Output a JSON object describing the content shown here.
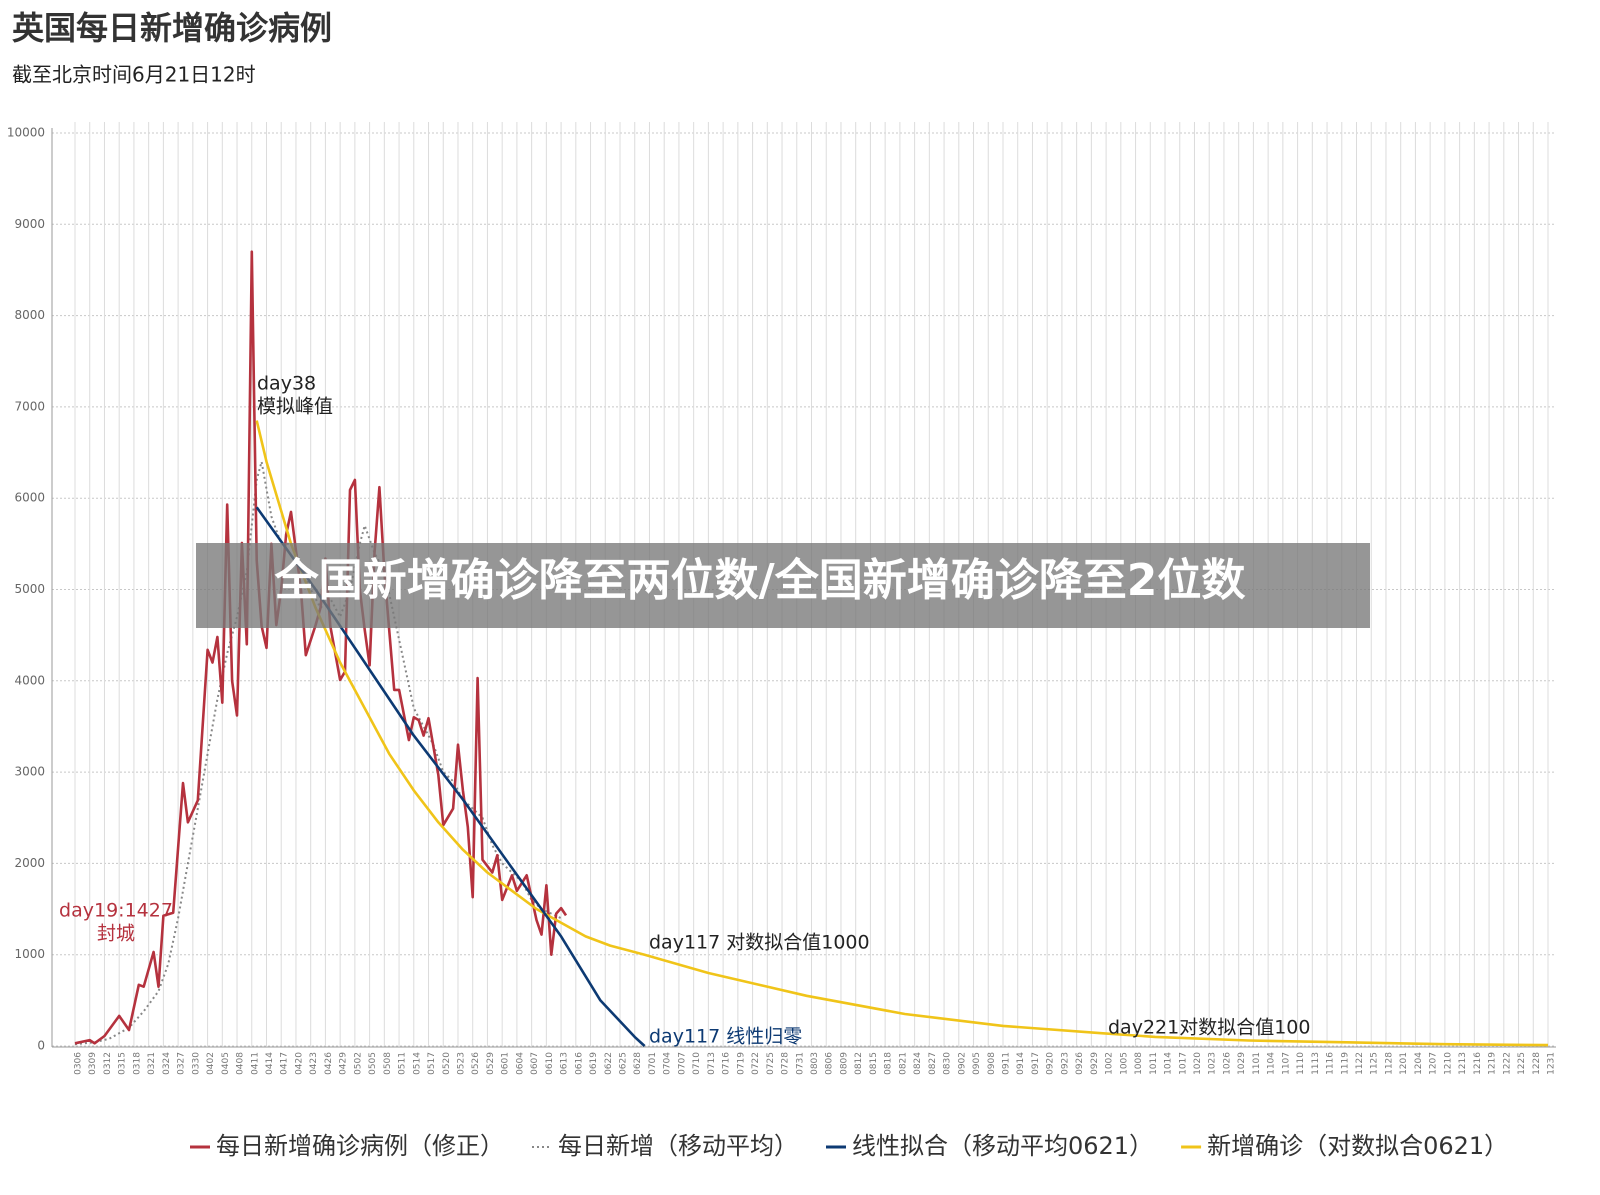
{
  "chart_data": {
    "type": "line",
    "title": "英国每日新增确诊病例",
    "subtitle": "截至北京时间6月21日12时",
    "xlim": [
      1,
      301
    ],
    "xticks": [
      {
        "value": 1,
        "label": "0306"
      },
      {
        "value": 4,
        "label": "0309"
      },
      {
        "value": 7,
        "label": "0312"
      },
      {
        "value": 10,
        "label": "0315"
      },
      {
        "value": 13,
        "label": "0318"
      },
      {
        "value": 16,
        "label": "0321"
      },
      {
        "value": 19,
        "label": "0324"
      },
      {
        "value": 22,
        "label": "0327"
      },
      {
        "value": 25,
        "label": "0330"
      },
      {
        "value": 28,
        "label": "0402"
      },
      {
        "value": 31,
        "label": "0405"
      },
      {
        "value": 34,
        "label": "0408"
      },
      {
        "value": 37,
        "label": "0411"
      },
      {
        "value": 40,
        "label": "0414"
      },
      {
        "value": 43,
        "label": "0417"
      },
      {
        "value": 46,
        "label": "0420"
      },
      {
        "value": 49,
        "label": "0423"
      },
      {
        "value": 52,
        "label": "0426"
      },
      {
        "value": 55,
        "label": "0429"
      },
      {
        "value": 58,
        "label": "0502"
      },
      {
        "value": 61,
        "label": "0505"
      },
      {
        "value": 64,
        "label": "0508"
      },
      {
        "value": 67,
        "label": "0511"
      },
      {
        "value": 70,
        "label": "0514"
      },
      {
        "value": 73,
        "label": "0517"
      },
      {
        "value": 76,
        "label": "0520"
      },
      {
        "value": 79,
        "label": "0523"
      },
      {
        "value": 82,
        "label": "0526"
      },
      {
        "value": 85,
        "label": "0529"
      },
      {
        "value": 88,
        "label": "0601"
      },
      {
        "value": 91,
        "label": "0604"
      },
      {
        "value": 94,
        "label": "0607"
      },
      {
        "value": 97,
        "label": "0610"
      },
      {
        "value": 100,
        "label": "0613"
      },
      {
        "value": 103,
        "label": "0616"
      },
      {
        "value": 106,
        "label": "0619"
      },
      {
        "value": 109,
        "label": "0622"
      },
      {
        "value": 112,
        "label": "0625"
      },
      {
        "value": 115,
        "label": "0628"
      },
      {
        "value": 118,
        "label": "0701"
      },
      {
        "value": 121,
        "label": "0704"
      },
      {
        "value": 124,
        "label": "0707"
      },
      {
        "value": 127,
        "label": "0710"
      },
      {
        "value": 130,
        "label": "0713"
      },
      {
        "value": 133,
        "label": "0716"
      },
      {
        "value": 136,
        "label": "0719"
      },
      {
        "value": 139,
        "label": "0722"
      },
      {
        "value": 142,
        "label": "0725"
      },
      {
        "value": 145,
        "label": "0728"
      },
      {
        "value": 148,
        "label": "0731"
      },
      {
        "value": 151,
        "label": "0803"
      },
      {
        "value": 154,
        "label": "0806"
      },
      {
        "value": 157,
        "label": "0809"
      },
      {
        "value": 160,
        "label": "0812"
      },
      {
        "value": 163,
        "label": "0815"
      },
      {
        "value": 166,
        "label": "0818"
      },
      {
        "value": 169,
        "label": "0821"
      },
      {
        "value": 172,
        "label": "0824"
      },
      {
        "value": 175,
        "label": "0827"
      },
      {
        "value": 178,
        "label": "0830"
      },
      {
        "value": 181,
        "label": "0902"
      },
      {
        "value": 184,
        "label": "0905"
      },
      {
        "value": 187,
        "label": "0908"
      },
      {
        "value": 190,
        "label": "0911"
      },
      {
        "value": 193,
        "label": "0914"
      },
      {
        "value": 196,
        "label": "0917"
      },
      {
        "value": 199,
        "label": "0920"
      },
      {
        "value": 202,
        "label": "0923"
      },
      {
        "value": 205,
        "label": "0926"
      },
      {
        "value": 208,
        "label": "0929"
      },
      {
        "value": 211,
        "label": "1002"
      },
      {
        "value": 214,
        "label": "1005"
      },
      {
        "value": 217,
        "label": "1008"
      },
      {
        "value": 220,
        "label": "1011"
      },
      {
        "value": 223,
        "label": "1014"
      },
      {
        "value": 226,
        "label": "1017"
      },
      {
        "value": 229,
        "label": "1020"
      },
      {
        "value": 232,
        "label": "1023"
      },
      {
        "value": 235,
        "label": "1026"
      },
      {
        "value": 238,
        "label": "1029"
      },
      {
        "value": 241,
        "label": "1101"
      },
      {
        "value": 244,
        "label": "1104"
      },
      {
        "value": 247,
        "label": "1107"
      },
      {
        "value": 250,
        "label": "1110"
      },
      {
        "value": 253,
        "label": "1113"
      },
      {
        "value": 256,
        "label": "1116"
      },
      {
        "value": 259,
        "label": "1119"
      },
      {
        "value": 262,
        "label": "1122"
      },
      {
        "value": 265,
        "label": "1125"
      },
      {
        "value": 268,
        "label": "1128"
      },
      {
        "value": 271,
        "label": "1201"
      },
      {
        "value": 274,
        "label": "1204"
      },
      {
        "value": 277,
        "label": "1207"
      },
      {
        "value": 280,
        "label": "1210"
      },
      {
        "value": 283,
        "label": "1213"
      },
      {
        "value": 286,
        "label": "1216"
      },
      {
        "value": 289,
        "label": "1219"
      },
      {
        "value": 292,
        "label": "1222"
      },
      {
        "value": 295,
        "label": "1225"
      },
      {
        "value": 298,
        "label": "1228"
      },
      {
        "value": 301,
        "label": "1231"
      }
    ],
    "ylim": [
      0,
      10000
    ],
    "yticks": [
      0,
      1000,
      2000,
      3000,
      4000,
      5000,
      6000,
      7000,
      8000,
      9000,
      10000
    ],
    "grid": true,
    "series": [
      {
        "name": "每日新增确诊病例（修正）",
        "color": "#b5323e",
        "style": "solid",
        "x": [
          1,
          4,
          5,
          7,
          10,
          12,
          14,
          15,
          17,
          18,
          19,
          21,
          23,
          24,
          26,
          28,
          29,
          30,
          31,
          32,
          33,
          34,
          35,
          36,
          37,
          38,
          39,
          40,
          41,
          42,
          43,
          44,
          45,
          47,
          48,
          50,
          51,
          52,
          53,
          55,
          56,
          57,
          58,
          59,
          60,
          61,
          62,
          63,
          64,
          66,
          67,
          69,
          70,
          71,
          72,
          73,
          75,
          76,
          78,
          79,
          80,
          81,
          82,
          83,
          84,
          86,
          87,
          88,
          90,
          91,
          93,
          95,
          96,
          97,
          98,
          99,
          100,
          101
        ],
        "values": [
          30,
          65,
          30,
          110,
          330,
          175,
          670,
          650,
          1030,
          650,
          1427,
          1460,
          2880,
          2450,
          2690,
          4340,
          4200,
          4480,
          3760,
          5930,
          4000,
          3620,
          5510,
          4400,
          8700,
          5320,
          4600,
          4360,
          5500,
          4610,
          5000,
          5600,
          5850,
          5000,
          4280,
          4610,
          4800,
          5340,
          4600,
          4010,
          4100,
          6090,
          6200,
          5000,
          4560,
          4170,
          5400,
          6120,
          5200,
          3900,
          3900,
          3350,
          3600,
          3570,
          3400,
          3590,
          2970,
          2420,
          2600,
          3300,
          2800,
          2400,
          1630,
          4030,
          2040,
          1900,
          2090,
          1600,
          1870,
          1700,
          1870,
          1380,
          1220,
          1760,
          1000,
          1450,
          1510,
          1430
        ]
      },
      {
        "name": "每日新增（移动平均）",
        "color": "#888888",
        "style": "dotted",
        "x": [
          1,
          5,
          8,
          12,
          15,
          18,
          20,
          22,
          24,
          26,
          28,
          30,
          32,
          34,
          36,
          38,
          39,
          41,
          43,
          45,
          47,
          49,
          51,
          53,
          55,
          57,
          59,
          60,
          62,
          64,
          66,
          68,
          70,
          72,
          74,
          76,
          78,
          80,
          82,
          84,
          86,
          88,
          90,
          92,
          94,
          96,
          98,
          100
        ],
        "values": [
          20,
          40,
          80,
          200,
          380,
          600,
          900,
          1400,
          2000,
          2600,
          3200,
          3800,
          4300,
          4700,
          5200,
          6200,
          6400,
          5800,
          5500,
          5500,
          5300,
          5000,
          4800,
          4900,
          4700,
          5000,
          5500,
          5700,
          5400,
          5200,
          4700,
          4200,
          3700,
          3500,
          3300,
          3000,
          2900,
          2700,
          2600,
          2500,
          2200,
          2000,
          1900,
          1800,
          1600,
          1500,
          1450,
          1400
        ]
      },
      {
        "name": "线性拟合（移动平均0621）",
        "color": "#0d3a73",
        "style": "solid",
        "x": [
          38,
          50,
          60,
          70,
          80,
          90,
          100,
          108,
          115,
          117
        ],
        "values": [
          5900,
          5000,
          4200,
          3400,
          2700,
          1950,
          1200,
          500,
          100,
          0
        ]
      },
      {
        "name": "新增确诊（对数拟合0621）",
        "color": "#f0c419",
        "style": "solid",
        "x": [
          38,
          40,
          45,
          50,
          55,
          60,
          65,
          70,
          75,
          80,
          85,
          90,
          95,
          100,
          105,
          110,
          117,
          130,
          150,
          170,
          190,
          210,
          221,
          240,
          260,
          280,
          301
        ],
        "values": [
          6850,
          6400,
          5500,
          4800,
          4200,
          3700,
          3200,
          2800,
          2450,
          2150,
          1900,
          1700,
          1500,
          1350,
          1200,
          1100,
          1000,
          800,
          550,
          350,
          220,
          140,
          100,
          60,
          40,
          20,
          10
        ]
      }
    ],
    "annotations": [
      {
        "lines": [
          "day38",
          "模拟峰值"
        ]
      },
      {
        "lines": [
          "day19:1427",
          "封城"
        ]
      },
      {
        "lines": [
          "day117 对数拟合值1000"
        ]
      },
      {
        "lines": [
          "day117 线性归零"
        ]
      },
      {
        "lines": [
          "day221对数拟合值100"
        ]
      }
    ]
  },
  "overlay_text": "全国新增确诊降至两位数/全国新增确诊降至2位数"
}
